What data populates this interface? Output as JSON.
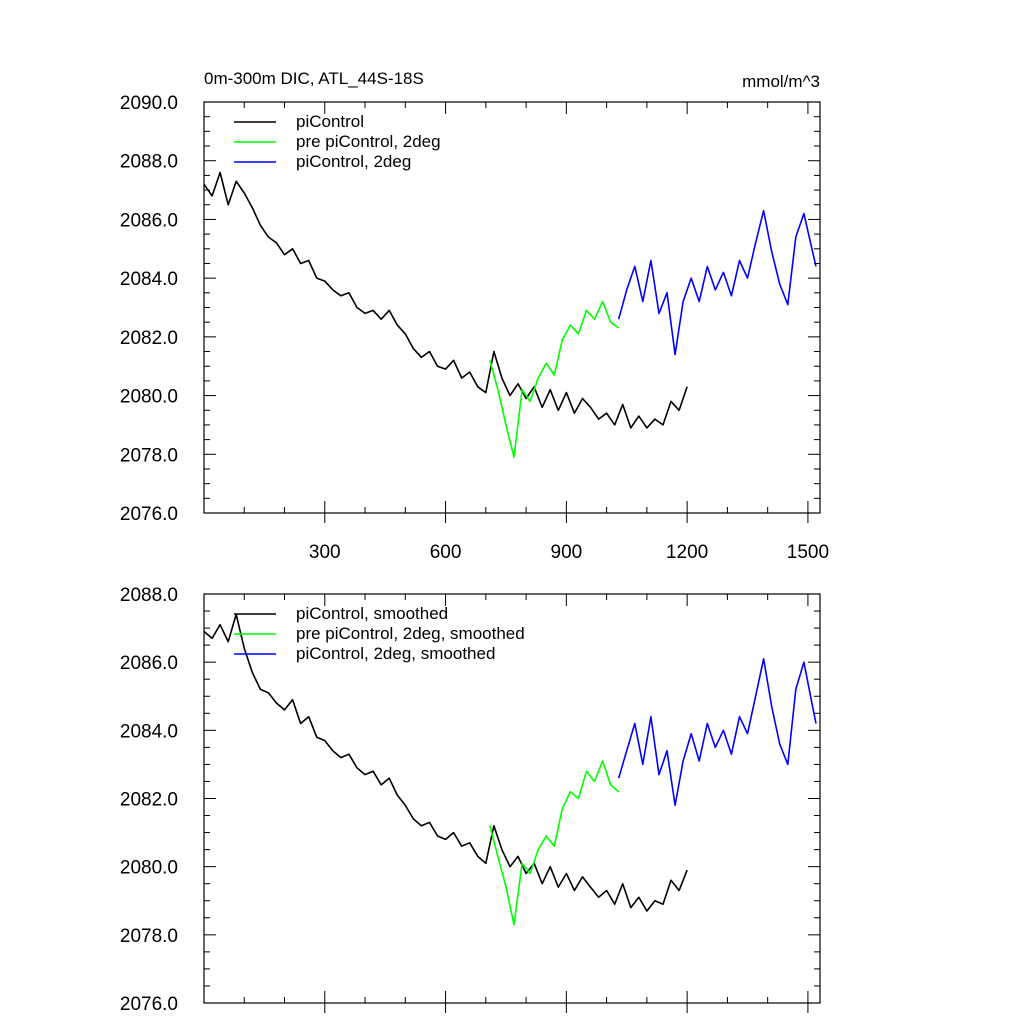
{
  "chart_data": [
    {
      "type": "line",
      "title": "0m-300m DIC, ATL_44S-18S",
      "units": "mmol/m^3",
      "xlim": [
        0,
        1530
      ],
      "ylim": [
        2076.0,
        2090.0
      ],
      "xticks": [
        300,
        600,
        900,
        1200,
        1500
      ],
      "xtick_labels": [
        "300",
        "600",
        "900",
        "1200",
        "1500"
      ],
      "yticks": [
        2076.0,
        2078.0,
        2080.0,
        2082.0,
        2084.0,
        2086.0,
        2088.0,
        2090.0
      ],
      "ytick_labels": [
        "2076.0",
        "2078.0",
        "2080.0",
        "2082.0",
        "2084.0",
        "2086.0",
        "2088.0",
        "2090.0"
      ],
      "legend_position": "top-left",
      "series": [
        {
          "name": "piControl",
          "color": "#000000",
          "x": [
            0,
            20,
            40,
            60,
            80,
            100,
            120,
            140,
            160,
            180,
            200,
            220,
            240,
            260,
            280,
            300,
            320,
            340,
            360,
            380,
            400,
            420,
            440,
            460,
            480,
            500,
            520,
            540,
            560,
            580,
            600,
            620,
            640,
            660,
            680,
            700,
            720,
            740,
            760,
            780,
            800,
            820,
            840,
            860,
            880,
            900,
            920,
            940,
            960,
            980,
            1000,
            1020,
            1040,
            1060,
            1080,
            1100,
            1120,
            1140,
            1160,
            1180,
            1200
          ],
          "y": [
            2087.2,
            2086.8,
            2087.6,
            2086.5,
            2087.3,
            2086.9,
            2086.4,
            2085.8,
            2085.4,
            2085.2,
            2084.8,
            2085.0,
            2084.5,
            2084.6,
            2084.0,
            2083.9,
            2083.6,
            2083.4,
            2083.5,
            2083.0,
            2082.8,
            2082.9,
            2082.6,
            2082.9,
            2082.4,
            2082.1,
            2081.6,
            2081.3,
            2081.5,
            2081.0,
            2080.9,
            2081.2,
            2080.6,
            2080.8,
            2080.3,
            2080.1,
            2081.5,
            2080.6,
            2080.0,
            2080.4,
            2079.9,
            2080.3,
            2079.6,
            2080.2,
            2079.5,
            2080.1,
            2079.4,
            2079.9,
            2079.6,
            2079.2,
            2079.4,
            2079.0,
            2079.7,
            2078.9,
            2079.3,
            2078.9,
            2079.2,
            2079.0,
            2079.8,
            2079.5,
            2080.3
          ]
        },
        {
          "name": "pre piControl, 2deg",
          "color": "#00ff00",
          "x": [
            710,
            730,
            750,
            770,
            790,
            810,
            830,
            850,
            870,
            890,
            910,
            930,
            950,
            970,
            990,
            1010,
            1030
          ],
          "y": [
            2081.2,
            2080.2,
            2079.0,
            2077.9,
            2080.2,
            2079.8,
            2080.6,
            2081.1,
            2080.7,
            2081.9,
            2082.4,
            2082.1,
            2082.9,
            2082.6,
            2083.2,
            2082.5,
            2082.3
          ]
        },
        {
          "name": "piControl, 2deg",
          "color": "#0000ff",
          "x": [
            1030,
            1050,
            1070,
            1090,
            1110,
            1130,
            1150,
            1170,
            1190,
            1210,
            1230,
            1250,
            1270,
            1290,
            1310,
            1330,
            1350,
            1370,
            1390,
            1410,
            1430,
            1450,
            1470,
            1490,
            1510,
            1520
          ],
          "y": [
            2082.6,
            2083.6,
            2084.4,
            2083.2,
            2084.6,
            2082.8,
            2083.5,
            2081.4,
            2083.2,
            2084.0,
            2083.2,
            2084.4,
            2083.6,
            2084.2,
            2083.4,
            2084.6,
            2084.0,
            2085.2,
            2086.3,
            2084.9,
            2083.8,
            2083.1,
            2085.4,
            2086.2,
            2085.0,
            2084.4
          ]
        }
      ]
    },
    {
      "type": "line",
      "title": "",
      "xlim": [
        0,
        1530
      ],
      "ylim": [
        2076.0,
        2088.0
      ],
      "xticks": [
        300,
        600,
        900,
        1200,
        1500
      ],
      "yticks": [
        2076.0,
        2078.0,
        2080.0,
        2082.0,
        2084.0,
        2086.0,
        2088.0
      ],
      "ytick_labels": [
        "2076.0",
        "2078.0",
        "2080.0",
        "2082.0",
        "2084.0",
        "2086.0",
        "2088.0"
      ],
      "legend_position": "top-left",
      "series": [
        {
          "name": "piControl, smoothed",
          "color": "#000000",
          "x": [
            0,
            20,
            40,
            60,
            80,
            100,
            120,
            140,
            160,
            180,
            200,
            220,
            240,
            260,
            280,
            300,
            320,
            340,
            360,
            380,
            400,
            420,
            440,
            460,
            480,
            500,
            520,
            540,
            560,
            580,
            600,
            620,
            640,
            660,
            680,
            700,
            720,
            740,
            760,
            780,
            800,
            820,
            840,
            860,
            880,
            900,
            920,
            940,
            960,
            980,
            1000,
            1020,
            1040,
            1060,
            1080,
            1100,
            1120,
            1140,
            1160,
            1180,
            1200
          ],
          "y": [
            2086.9,
            2086.7,
            2087.1,
            2086.6,
            2087.4,
            2086.4,
            2085.7,
            2085.2,
            2085.1,
            2084.8,
            2084.6,
            2084.9,
            2084.2,
            2084.4,
            2083.8,
            2083.7,
            2083.4,
            2083.2,
            2083.3,
            2082.9,
            2082.7,
            2082.8,
            2082.4,
            2082.6,
            2082.1,
            2081.8,
            2081.4,
            2081.2,
            2081.3,
            2080.9,
            2080.8,
            2081.0,
            2080.6,
            2080.7,
            2080.3,
            2080.1,
            2081.2,
            2080.5,
            2080.0,
            2080.3,
            2079.8,
            2080.1,
            2079.5,
            2080.0,
            2079.4,
            2079.8,
            2079.3,
            2079.7,
            2079.4,
            2079.1,
            2079.3,
            2078.9,
            2079.5,
            2078.8,
            2079.1,
            2078.7,
            2079.0,
            2078.9,
            2079.6,
            2079.3,
            2079.9
          ]
        },
        {
          "name": "pre piControl, 2deg, smoothed",
          "color": "#00ff00",
          "x": [
            710,
            730,
            750,
            770,
            790,
            810,
            830,
            850,
            870,
            890,
            910,
            930,
            950,
            970,
            990,
            1010,
            1030
          ],
          "y": [
            2081.2,
            2080.3,
            2079.4,
            2078.3,
            2080.1,
            2079.8,
            2080.5,
            2080.9,
            2080.6,
            2081.7,
            2082.2,
            2082.0,
            2082.8,
            2082.5,
            2083.1,
            2082.4,
            2082.2
          ]
        },
        {
          "name": "piControl, 2deg, smoothed",
          "color": "#0000ff",
          "x": [
            1030,
            1050,
            1070,
            1090,
            1110,
            1130,
            1150,
            1170,
            1190,
            1210,
            1230,
            1250,
            1270,
            1290,
            1310,
            1330,
            1350,
            1370,
            1390,
            1410,
            1430,
            1450,
            1470,
            1490,
            1510,
            1520
          ],
          "y": [
            2082.6,
            2083.4,
            2084.2,
            2083.0,
            2084.4,
            2082.7,
            2083.4,
            2081.8,
            2083.1,
            2083.9,
            2083.1,
            2084.2,
            2083.5,
            2084.0,
            2083.3,
            2084.4,
            2083.9,
            2085.0,
            2086.1,
            2084.7,
            2083.6,
            2083.0,
            2085.2,
            2086.0,
            2084.8,
            2084.2
          ]
        }
      ]
    }
  ]
}
